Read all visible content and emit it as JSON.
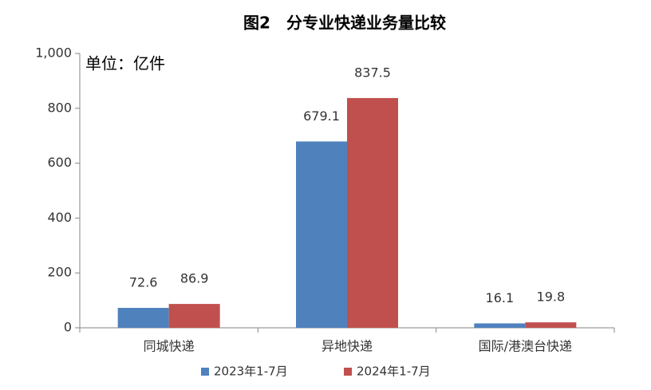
{
  "chart_data": {
    "type": "bar",
    "title": "图2　分专业快递业务量比较",
    "annotation": "单位：亿件",
    "categories": [
      "同城快递",
      "异地快递",
      "国际/港澳台快递"
    ],
    "series": [
      {
        "name": "2023年1-7月",
        "color": "#4f81bd",
        "values": [
          72.6,
          679.1,
          16.1
        ]
      },
      {
        "name": "2024年1-7月",
        "color": "#c0504d",
        "values": [
          86.9,
          837.5,
          19.8
        ]
      }
    ],
    "ylim": [
      0,
      1000
    ],
    "yticks": [
      0,
      200,
      400,
      600,
      800,
      {
        "value": 1000,
        "label": "1,000"
      }
    ],
    "grid": false,
    "legend": "bottom"
  }
}
